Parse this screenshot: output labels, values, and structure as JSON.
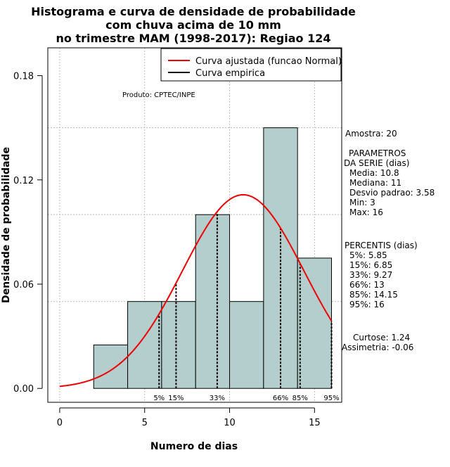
{
  "chart_data": {
    "type": "bar",
    "title_lines": [
      "Histograma e curva de densidade de probabilidade",
      "com chuva acima de 10 mm",
      "no trimestre MAM (1998-2017): Regiao 124"
    ],
    "xlabel": "Numero de dias",
    "ylabel": "Densidade de probabilidade",
    "xlim": [
      -0.7,
      16.6
    ],
    "ylim": [
      -0.008,
      0.196
    ],
    "x_ticks": [
      0,
      5,
      10,
      15
    ],
    "y_ticks": [
      0.0,
      0.06,
      0.12,
      0.18
    ],
    "y_tick_labels": [
      "0.00",
      "0.06",
      "0.12",
      "0.18"
    ],
    "grid": true,
    "bars": [
      {
        "x0": 2,
        "x1": 4,
        "density": 0.025
      },
      {
        "x0": 4,
        "x1": 6,
        "density": 0.05
      },
      {
        "x0": 6,
        "x1": 8,
        "density": 0.05
      },
      {
        "x0": 8,
        "x1": 10,
        "density": 0.1
      },
      {
        "x0": 10,
        "x1": 12,
        "density": 0.05
      },
      {
        "x0": 12,
        "x1": 14,
        "density": 0.15
      },
      {
        "x0": 14,
        "x1": 16,
        "density": 0.075
      }
    ],
    "bar_color": "#b4cdcd",
    "normal_curve": {
      "name": "Curva ajustada (funcao Normal)",
      "mean": 10.8,
      "sd": 3.58,
      "color": "#ee0000"
    },
    "empirical_curve": {
      "name": "Curva empirica",
      "color": "#000000"
    },
    "legend_position": "top-right",
    "percentile_markers": [
      {
        "label": "5%",
        "x": 5.85
      },
      {
        "label": "15%",
        "x": 6.85
      },
      {
        "label": "33%",
        "x": 9.27
      },
      {
        "label": "66%",
        "x": 13
      },
      {
        "label": "85%",
        "x": 14.15
      },
      {
        "label": "95%",
        "x": 16
      }
    ],
    "annotation": "Produto: CPTEC/INPE"
  },
  "stats_panel": {
    "amostra": "Amostra: 20",
    "param_title_1": "PARAMETROS",
    "param_title_2": "DA SERIE (dias)",
    "media": "Media: 10.8",
    "mediana": "Mediana: 11",
    "desvio": "Desvio padrao: 3.58",
    "min": "Min: 3",
    "max": "Max: 16",
    "perc_title": "PERCENTIS (dias)",
    "p5": "5%: 5.85",
    "p15": "15%: 6.85",
    "p33": "33%: 9.27",
    "p66": "66%: 13",
    "p85": "85%: 14.15",
    "p95": "95%: 16",
    "curtose": "Curtose: 1.24",
    "assimetria": "Assimetria: -0.06"
  }
}
